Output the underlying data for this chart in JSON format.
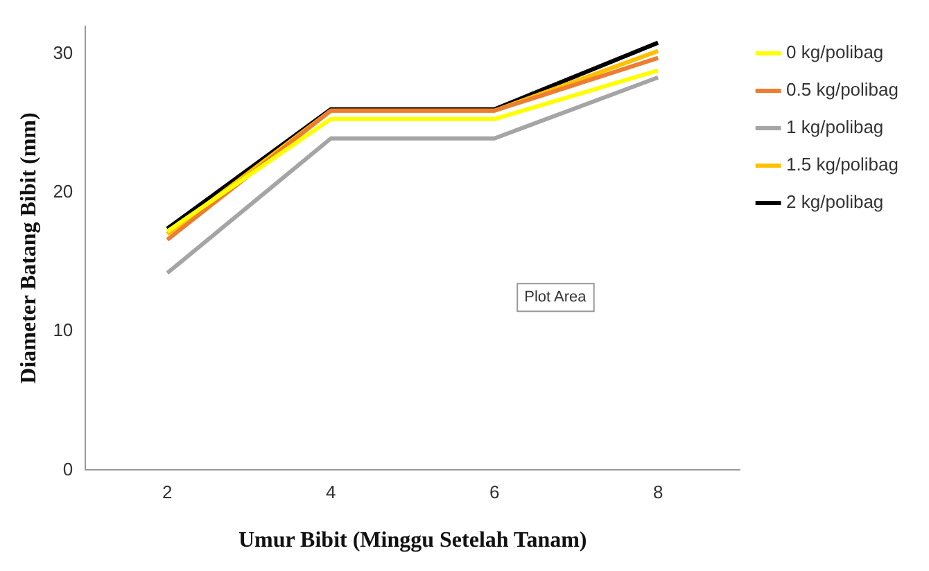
{
  "chart_data": {
    "type": "line",
    "xlabel": "Umur Bibit (Minggu Setelah Tanam)",
    "ylabel": "Diameter Batang Bibit (mm)",
    "categories": [
      "2",
      "4",
      "6",
      "8"
    ],
    "series": [
      {
        "name": "0 kg/polibag",
        "color": "#ffff00",
        "values": [
          17.2,
          25.3,
          25.3,
          28.8
        ]
      },
      {
        "name": "0.5 kg/polibag",
        "color": "#ed7d31",
        "values": [
          16.6,
          25.9,
          25.9,
          29.7
        ]
      },
      {
        "name": "1 kg/polibag",
        "color": "#a5a5a5",
        "values": [
          14.2,
          23.9,
          23.9,
          28.3
        ]
      },
      {
        "name": "1.5 kg/polibag",
        "color": "#ffc000",
        "values": [
          17.0,
          25.9,
          25.9,
          30.2
        ]
      },
      {
        "name": "2 kg/polibag",
        "color": "#000000",
        "values": [
          17.4,
          26.0,
          26.0,
          30.8
        ]
      }
    ],
    "ylim": [
      0,
      32
    ],
    "yticks": [
      0,
      10,
      20,
      30
    ],
    "grid": false,
    "legend": "top right",
    "marker": "none",
    "line_style": "solid",
    "annotations": [
      "Plot Area"
    ]
  }
}
